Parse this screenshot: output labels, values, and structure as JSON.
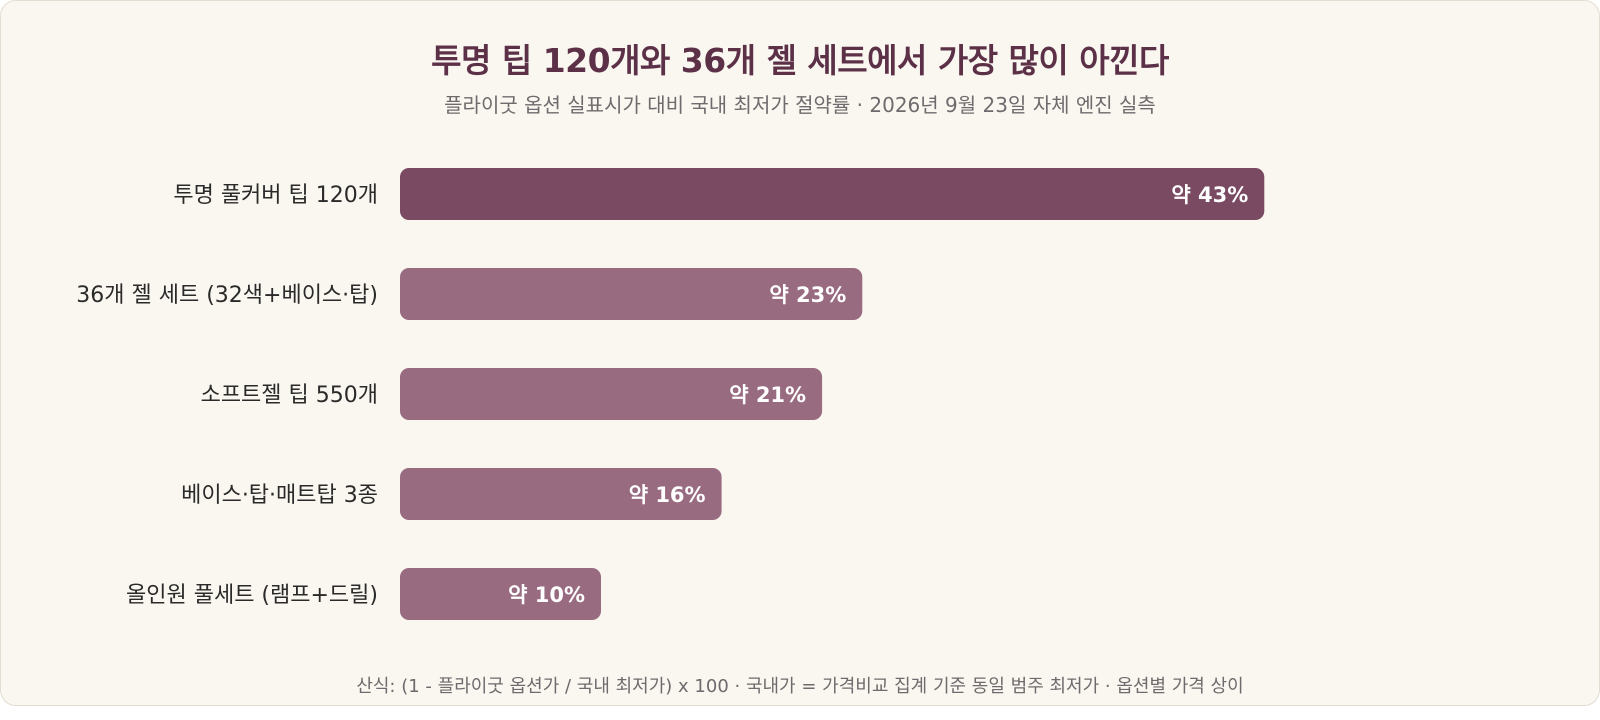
{
  "header": {
    "title": "투명 팁 120개와 36개 젤 세트에서 가장 많이 아낀다",
    "subtitle": "플라이굿 옵션 실표시가 대비 국내 최저가 절약률 · 2026년 9월 23일 자체 엔진 실측"
  },
  "footer": {
    "note": "산식: (1 - 플라이굿 옵션가 / 국내 최저가) x 100 · 국내가 = 가격비교 집계 기준 동일 범주 최저가 · 옵션별 가격 상이"
  },
  "colors": {
    "highlight_bar": "#7a4a63",
    "bar": "#986b80",
    "background": "#faf7f0",
    "title": "#5c3148"
  },
  "chart_data": {
    "type": "bar",
    "orientation": "horizontal",
    "categories": [
      "투명 풀커버 팁 120개",
      "36개 젤 세트 (32색+베이스·탑)",
      "소프트젤 팁 550개",
      "베이스·탑·매트탑 3종",
      "올인원 풀세트 (램프+드릴)"
    ],
    "values": [
      43,
      23,
      21,
      16,
      10
    ],
    "value_labels": [
      "약 43%",
      "약 23%",
      "약 21%",
      "약 16%",
      "약 10%"
    ],
    "unit": "%",
    "xlim": [
      0,
      60
    ],
    "highlight_index": 0,
    "grid": false,
    "legend": "none"
  }
}
